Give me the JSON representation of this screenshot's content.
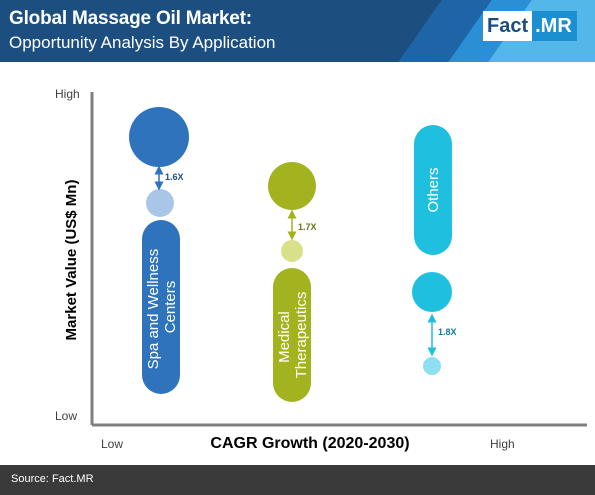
{
  "header": {
    "title": "Global Massage Oil Market:",
    "subtitle": "Opportunity Analysis By Application",
    "logo_part1": "Fact",
    "logo_part2": ".MR"
  },
  "footer": {
    "source": "Source: Fact.MR"
  },
  "colors": {
    "header_bg": "#1c4e80",
    "spa": "#2f73bd",
    "spa_light": "#a9c6e8",
    "medical": "#a3b320",
    "medical_light": "#d9e08a",
    "others": "#1fbfe0",
    "others_light": "#8fdff2"
  },
  "chart_data": {
    "type": "bubble",
    "xlabel": "CAGR Growth (2020-2030)",
    "ylabel": "Market Value (US$ Mn)",
    "x_tick_labels": [
      "Low",
      "High"
    ],
    "y_tick_labels": [
      "Low",
      "High"
    ],
    "series": [
      {
        "name": "Spa and Wellness Centers",
        "label_lines": [
          "Spa and Wellness",
          "Centers"
        ],
        "multiplier": "1.6X"
      },
      {
        "name": "Medical Therapeutics",
        "label_lines": [
          "Medical",
          "Therapeutics"
        ],
        "multiplier": "1.7X"
      },
      {
        "name": "Others",
        "label_lines": [
          "Others"
        ],
        "multiplier": "1.8X"
      }
    ]
  }
}
